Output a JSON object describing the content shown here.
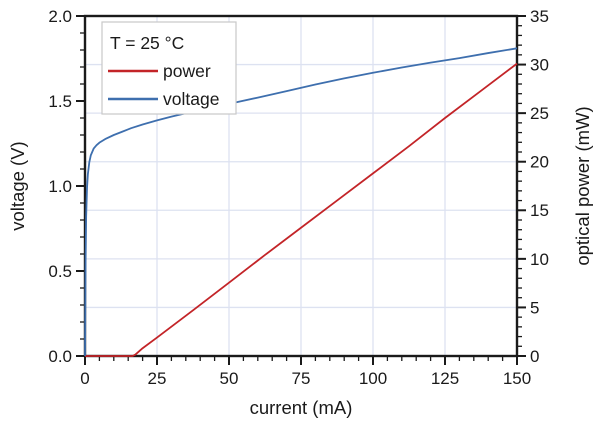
{
  "chart_data": {
    "type": "line",
    "title": "",
    "x_axis": {
      "label": "current (mA)",
      "min": 0,
      "max": 150,
      "major_ticks": [
        0,
        25,
        50,
        75,
        100,
        125,
        150
      ],
      "tick_labels": [
        "0",
        "25",
        "50",
        "75",
        "100",
        "125",
        "150"
      ],
      "minor_step": 5
    },
    "y_left": {
      "label": "voltage (V)",
      "min": 0,
      "max": 2,
      "major_ticks": [
        0,
        0.5,
        1,
        1.5,
        2
      ],
      "tick_labels": [
        "0.0",
        "0.5",
        "1.0",
        "1.5",
        "2.0"
      ],
      "minor_step": 0.1
    },
    "y_right": {
      "label": "optical power (mW)",
      "min": 0,
      "max": 35,
      "major_ticks": [
        0,
        5,
        10,
        15,
        20,
        25,
        30,
        35
      ],
      "tick_labels": [
        "0",
        "5",
        "10",
        "15",
        "20",
        "25",
        "30",
        "35"
      ],
      "minor_step": 1
    },
    "grid": {
      "show": true,
      "color": "#dde2f1",
      "x_values": [
        25,
        50,
        75,
        100,
        125
      ],
      "y_right_values": [
        5,
        10,
        15,
        20,
        25,
        30
      ]
    },
    "series": [
      {
        "name": "power",
        "axis": "right",
        "color": "#c32428",
        "threshold_current_mA": 16.5,
        "points": [
          [
            0,
            0
          ],
          [
            5,
            0
          ],
          [
            10,
            0
          ],
          [
            15,
            0
          ],
          [
            16.5,
            0
          ],
          [
            17.5,
            0.15
          ],
          [
            20,
            0.8
          ],
          [
            25,
            1.9
          ],
          [
            37.5,
            4.7
          ],
          [
            50,
            7.55
          ],
          [
            62.5,
            10.4
          ],
          [
            75,
            13.2
          ],
          [
            87.5,
            16.0
          ],
          [
            100,
            18.8
          ],
          [
            112.5,
            21.6
          ],
          [
            125,
            24.5
          ],
          [
            137.5,
            27.3
          ],
          [
            150,
            30.1
          ]
        ]
      },
      {
        "name": "voltage",
        "axis": "left",
        "color": "#3e6fae",
        "points": [
          [
            0,
            0
          ],
          [
            0.2,
            0.55
          ],
          [
            0.4,
            0.82
          ],
          [
            0.7,
            0.99
          ],
          [
            1,
            1.07
          ],
          [
            1.5,
            1.14
          ],
          [
            2,
            1.18
          ],
          [
            3,
            1.22
          ],
          [
            4,
            1.24
          ],
          [
            5,
            1.255
          ],
          [
            7,
            1.276
          ],
          [
            10,
            1.3
          ],
          [
            13,
            1.32
          ],
          [
            16,
            1.34
          ],
          [
            20,
            1.362
          ],
          [
            25,
            1.386
          ],
          [
            30,
            1.408
          ],
          [
            35,
            1.428
          ],
          [
            40,
            1.447
          ],
          [
            45,
            1.465
          ],
          [
            50,
            1.483
          ],
          [
            60,
            1.52
          ],
          [
            70,
            1.558
          ],
          [
            80,
            1.597
          ],
          [
            90,
            1.633
          ],
          [
            100,
            1.666
          ],
          [
            110,
            1.697
          ],
          [
            120,
            1.726
          ],
          [
            130,
            1.752
          ],
          [
            140,
            1.782
          ],
          [
            150,
            1.81
          ]
        ]
      }
    ],
    "legend": {
      "position": "top-left",
      "title": "T = 25 °C",
      "entries": [
        {
          "label": "power",
          "color": "#c32428"
        },
        {
          "label": "voltage",
          "color": "#3e6fae"
        }
      ]
    },
    "colors": {
      "axis": "#1a1a1a",
      "text": "#1a1a1a",
      "background": "#ffffff",
      "legend_border": "#c8c8c8"
    }
  }
}
